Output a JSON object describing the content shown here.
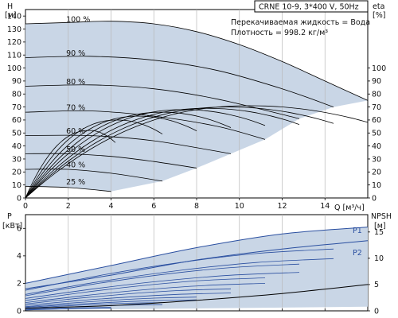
{
  "chart_data": [
    {
      "type": "line",
      "id": "head",
      "title": "CRNE 10-9, 3*400 V, 50Hz",
      "annotation_lines": [
        "Перекачиваемая жидкость = Вода",
        "Плотность = 998.2 кг/м³"
      ],
      "xlabel": "Q [м³/ч]",
      "ylabel_left": [
        "H",
        "[м]"
      ],
      "ylabel_right": [
        "eta",
        "[%]"
      ],
      "xlim": [
        0,
        16
      ],
      "ylim": [
        0,
        145
      ],
      "y2lim": [
        0,
        145
      ],
      "x_ticks": [
        "0",
        "2",
        "4",
        "6",
        "8",
        "10",
        "12",
        "14"
      ],
      "x_tick_values": [
        0,
        2,
        4,
        6,
        8,
        10,
        12,
        14
      ],
      "y_ticks": [
        "0",
        "10",
        "20",
        "30",
        "40",
        "50",
        "60",
        "70",
        "80",
        "90",
        "100",
        "110",
        "120",
        "130",
        "140"
      ],
      "y_tick_values": [
        0,
        10,
        20,
        30,
        40,
        50,
        60,
        70,
        80,
        90,
        100,
        110,
        120,
        130,
        140
      ],
      "y2_ticks": [
        "0",
        "10",
        "20",
        "30",
        "40",
        "50",
        "60",
        "70",
        "80",
        "90",
        "100"
      ],
      "y2_tick_values": [
        0,
        10,
        20,
        30,
        40,
        50,
        60,
        70,
        80,
        90,
        100
      ],
      "grid": "vertical",
      "operating_area_color": "#c9d6e6",
      "line_color": "#000000",
      "speed_curves": [
        {
          "name": "100 %",
          "q_max": 16,
          "points": [
            [
              0,
              134
            ],
            [
              2,
              135
            ],
            [
              4,
              136
            ],
            [
              6,
              134
            ],
            [
              8,
              128
            ],
            [
              10,
              118
            ],
            [
              12,
              105
            ],
            [
              14,
              90
            ],
            [
              16,
              75
            ]
          ]
        },
        {
          "name": "90 %",
          "q_max": 14.4,
          "points": [
            [
              0,
              108
            ],
            [
              3,
              109
            ],
            [
              6,
              106
            ],
            [
              9,
              98
            ],
            [
              12,
              84
            ],
            [
              14.4,
              70
            ]
          ]
        },
        {
          "name": "80 %",
          "q_max": 12.8,
          "points": [
            [
              0,
              86
            ],
            [
              3,
              87
            ],
            [
              6,
              84
            ],
            [
              9,
              76
            ],
            [
              12.8,
              61
            ]
          ]
        },
        {
          "name": "70 %",
          "q_max": 11.2,
          "points": [
            [
              0,
              66
            ],
            [
              3,
              67
            ],
            [
              6,
              63
            ],
            [
              9,
              55
            ],
            [
              11.2,
              45
            ]
          ]
        },
        {
          "name": "60 %",
          "q_max": 9.6,
          "points": [
            [
              0,
              48
            ],
            [
              3,
              48
            ],
            [
              6,
              44
            ],
            [
              9.6,
              34
            ]
          ]
        },
        {
          "name": "50 %",
          "q_max": 8,
          "points": [
            [
              0,
              34
            ],
            [
              2,
              34
            ],
            [
              4,
              32
            ],
            [
              6,
              28
            ],
            [
              8,
              23
            ]
          ]
        },
        {
          "name": "40 %",
          "q_max": 6.4,
          "points": [
            [
              0,
              22
            ],
            [
              2,
              22
            ],
            [
              4,
              19
            ],
            [
              6.4,
              13
            ]
          ]
        },
        {
          "name": "25 %",
          "q_max": 4,
          "points": [
            [
              0,
              9
            ],
            [
              2,
              8
            ],
            [
              4,
              5
            ]
          ]
        }
      ],
      "efficiency_curves": [
        {
          "peak_q": 10.5,
          "peak_eta": 71,
          "q_end": 16
        },
        {
          "peak_q": 9.5,
          "peak_eta": 70,
          "q_end": 14.4
        },
        {
          "peak_q": 8.5,
          "peak_eta": 69,
          "q_end": 12.8
        },
        {
          "peak_q": 7.4,
          "peak_eta": 68,
          "q_end": 11.2
        },
        {
          "peak_q": 6.4,
          "peak_eta": 66,
          "q_end": 9.6
        },
        {
          "peak_q": 5.3,
          "peak_eta": 63,
          "q_end": 8
        },
        {
          "peak_q": 4.3,
          "peak_eta": 60,
          "q_end": 6.4
        },
        {
          "peak_q": 3.0,
          "peak_eta": 52,
          "q_end": 4.2
        }
      ]
    },
    {
      "type": "line",
      "id": "power",
      "xlim": [
        0,
        16
      ],
      "ylim": [
        0,
        7
      ],
      "y2lim": [
        0,
        18.3
      ],
      "ylabel_left": [
        "P",
        "[кВт]"
      ],
      "ylabel_right": [
        "NPSH",
        "[м]"
      ],
      "y_ticks": [
        "0",
        "2",
        "4",
        "6"
      ],
      "y_tick_values": [
        0,
        2,
        4,
        6
      ],
      "y2_ticks": [
        "0",
        "5",
        "10",
        "15"
      ],
      "y2_tick_values": [
        0,
        5,
        10,
        15
      ],
      "grid": "vertical",
      "series": [
        {
          "name": "P1",
          "label_visible": true,
          "points": [
            [
              0,
              2.0
            ],
            [
              4,
              3.3
            ],
            [
              8,
              4.6
            ],
            [
              12,
              5.6
            ],
            [
              16,
              6.1
            ]
          ]
        },
        {
          "name": "P2",
          "label_visible": true,
          "points": [
            [
              0,
              1.6
            ],
            [
              4,
              2.6
            ],
            [
              8,
              3.7
            ],
            [
              12,
              4.5
            ],
            [
              16,
              5.1
            ]
          ]
        }
      ],
      "power_family": [
        {
          "q_max": 14.4,
          "p1": [
            1.5,
            4.5
          ],
          "p2": [
            1.2,
            3.8
          ]
        },
        {
          "q_max": 12.8,
          "p1": [
            1.1,
            3.4
          ],
          "p2": [
            0.9,
            2.8
          ]
        },
        {
          "q_max": 11.2,
          "p1": [
            0.75,
            2.4
          ],
          "p2": [
            0.6,
            2.0
          ]
        },
        {
          "q_max": 9.6,
          "p1": [
            0.5,
            1.6
          ],
          "p2": [
            0.4,
            1.3
          ]
        },
        {
          "q_max": 8.0,
          "p1": [
            0.3,
            1.0
          ],
          "p2": [
            0.25,
            0.8
          ]
        },
        {
          "q_max": 6.4,
          "p1": [
            0.18,
            0.6
          ],
          "p2": [
            0.14,
            0.45
          ]
        },
        {
          "q_max": 4.0,
          "p1": [
            0.08,
            0.25
          ],
          "p2": [
            0.06,
            0.2
          ]
        }
      ],
      "npsh": [
        [
          0,
          0.5
        ],
        [
          4,
          1.0
        ],
        [
          8,
          2.0
        ],
        [
          12,
          3.3
        ],
        [
          16,
          5.0
        ]
      ],
      "area_color": "#c9d6e6",
      "line_color": "#2a4fa0"
    }
  ]
}
